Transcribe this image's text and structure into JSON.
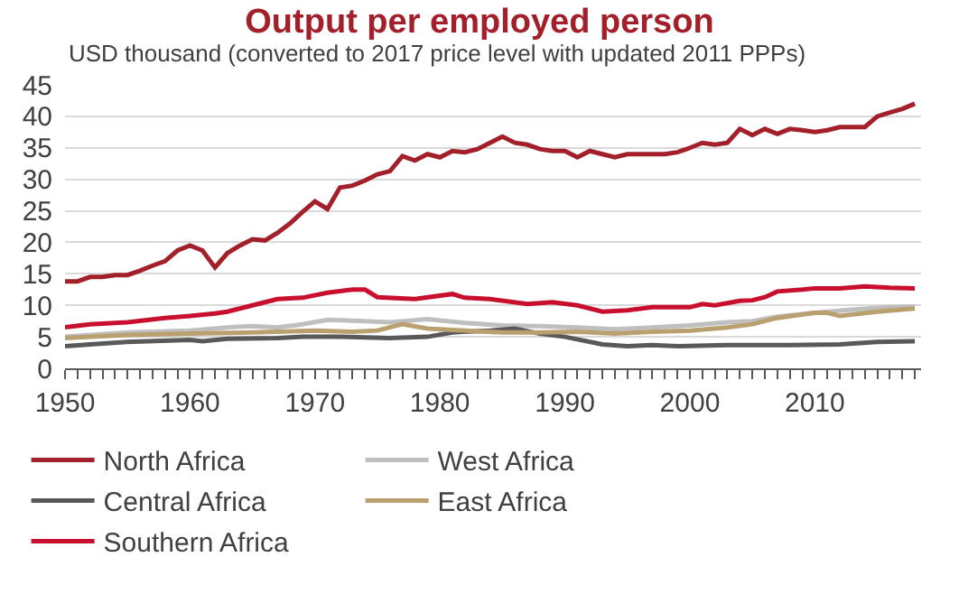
{
  "chart_data": {
    "type": "line",
    "title": "Output per employed person",
    "subtitle": "USD thousand (converted to 2017 price level with updated 2011 PPPs)",
    "xlim": [
      1950,
      2018.5
    ],
    "xticks": [
      1950,
      {
        "value": 1951,
        "label": null
      },
      {
        "value": 1952,
        "label": null
      },
      {
        "value": 1953,
        "label": null
      },
      {
        "value": 1954,
        "label": null
      },
      {
        "value": 1955,
        "label": null
      },
      {
        "value": 1956,
        "label": null
      },
      {
        "value": 1957,
        "label": null
      },
      {
        "value": 1958,
        "label": null
      },
      {
        "value": 1959,
        "label": null
      },
      1960,
      {
        "value": 1961,
        "label": null
      },
      {
        "value": 1962,
        "label": null
      },
      {
        "value": 1963,
        "label": null
      },
      {
        "value": 1964,
        "label": null
      },
      {
        "value": 1965,
        "label": null
      },
      {
        "value": 1966,
        "label": null
      },
      {
        "value": 1967,
        "label": null
      },
      {
        "value": 1968,
        "label": null
      },
      {
        "value": 1969,
        "label": null
      },
      1970,
      {
        "value": 1971,
        "label": null
      },
      {
        "value": 1972,
        "label": null
      },
      {
        "value": 1973,
        "label": null
      },
      {
        "value": 1974,
        "label": null
      },
      {
        "value": 1975,
        "label": null
      },
      {
        "value": 1976,
        "label": null
      },
      {
        "value": 1977,
        "label": null
      },
      {
        "value": 1978,
        "label": null
      },
      {
        "value": 1979,
        "label": null
      },
      1980,
      {
        "value": 1981,
        "label": null
      },
      {
        "value": 1982,
        "label": null
      },
      {
        "value": 1983,
        "label": null
      },
      {
        "value": 1984,
        "label": null
      },
      {
        "value": 1985,
        "label": null
      },
      {
        "value": 1986,
        "label": null
      },
      {
        "value": 1987,
        "label": null
      },
      {
        "value": 1988,
        "label": null
      },
      {
        "value": 1989,
        "label": null
      },
      1990,
      {
        "value": 1991,
        "label": null
      },
      {
        "value": 1992,
        "label": null
      },
      {
        "value": 1993,
        "label": null
      },
      {
        "value": 1994,
        "label": null
      },
      {
        "value": 1995,
        "label": null
      },
      {
        "value": 1996,
        "label": null
      },
      {
        "value": 1997,
        "label": null
      },
      {
        "value": 1998,
        "label": null
      },
      {
        "value": 1999,
        "label": null
      },
      2000,
      {
        "value": 2001,
        "label": null
      },
      {
        "value": 2002,
        "label": null
      },
      {
        "value": 2003,
        "label": null
      },
      {
        "value": 2004,
        "label": null
      },
      {
        "value": 2005,
        "label": null
      },
      {
        "value": 2006,
        "label": null
      },
      {
        "value": 2007,
        "label": null
      },
      {
        "value": 2008,
        "label": null
      },
      {
        "value": 2009,
        "label": null
      },
      2010,
      {
        "value": 2011,
        "label": null
      },
      {
        "value": 2012,
        "label": null
      },
      {
        "value": 2013,
        "label": null
      },
      {
        "value": 2014,
        "label": null
      },
      {
        "value": 2015,
        "label": null
      },
      {
        "value": 2016,
        "label": null
      },
      {
        "value": 2017,
        "label": null
      },
      {
        "value": 2018,
        "label": null
      }
    ],
    "ylim": [
      0,
      45
    ],
    "yticks": [
      0,
      5,
      10,
      15,
      20,
      25,
      30,
      35,
      40,
      45
    ],
    "grid": "y",
    "legend": "bottom",
    "line_style": "solid",
    "marker": "none",
    "series": [
      {
        "name": "North Africa",
        "color": "#a3202a",
        "x": [
          1950,
          1951,
          1952,
          1953,
          1954,
          1955,
          1956,
          1957,
          1958,
          1959,
          1960,
          1961,
          1962,
          1963,
          1964,
          1965,
          1966,
          1967,
          1968,
          1969,
          1970,
          1971,
          1972,
          1973,
          1974,
          1975,
          1976,
          1977,
          1978,
          1979,
          1980,
          1981,
          1982,
          1983,
          1984,
          1985,
          1986,
          1987,
          1988,
          1989,
          1990,
          1991,
          1992,
          1993,
          1994,
          1995,
          1996,
          1997,
          1998,
          1999,
          2000,
          2001,
          2002,
          2003,
          2004,
          2005,
          2006,
          2007,
          2008,
          2009,
          2010,
          2011,
          2012,
          2013,
          2014,
          2015,
          2016,
          2017,
          2018
        ],
        "values": [
          13.8,
          13.8,
          14.5,
          14.5,
          14.8,
          14.8,
          15.5,
          16.3,
          17,
          18.7,
          19.5,
          18.7,
          16,
          18.3,
          19.5,
          20.5,
          20.3,
          21.5,
          23,
          24.8,
          26.5,
          25.3,
          28.7,
          29,
          29.8,
          30.8,
          31.3,
          33.7,
          33,
          34,
          33.5,
          34.5,
          34.3,
          34.8,
          35.8,
          36.8,
          35.8,
          35.5,
          34.8,
          34.5,
          34.5,
          33.5,
          34.5,
          34,
          33.5,
          34,
          34,
          34,
          34,
          34.3,
          35,
          35.8,
          35.5,
          35.8,
          38,
          37,
          38,
          37.2,
          38,
          37.8,
          37.5,
          37.8,
          38.3,
          38.3,
          38.3,
          40,
          40.6,
          41.2,
          42
        ]
      },
      {
        "name": "West Africa",
        "color": "#bfbfbf",
        "x": [
          1950,
          1955,
          1960,
          1963,
          1965,
          1967,
          1969,
          1971,
          1974,
          1976,
          1979,
          1982,
          1985,
          1988,
          1991,
          1994,
          1997,
          2000,
          2003,
          2005,
          2007,
          2010,
          2013,
          2016,
          2018
        ],
        "values": [
          5,
          5.7,
          6,
          6.5,
          6.7,
          6.5,
          7,
          7.7,
          7.5,
          7.3,
          7.8,
          7.2,
          6.8,
          6.7,
          6.5,
          6.2,
          6.5,
          6.8,
          7.3,
          7.5,
          8.2,
          8.8,
          9.3,
          9.7,
          9.8
        ]
      },
      {
        "name": "Central Africa",
        "color": "#595959",
        "x": [
          1950,
          1952,
          1955,
          1960,
          1961,
          1963,
          1967,
          1969,
          1972,
          1976,
          1979,
          1981,
          1984,
          1986,
          1988,
          1990,
          1993,
          1995,
          1997,
          1999,
          2003,
          2008,
          2012,
          2015,
          2018
        ],
        "values": [
          3.5,
          3.8,
          4.2,
          4.5,
          4.3,
          4.7,
          4.8,
          5,
          5,
          4.8,
          5,
          5.7,
          6,
          6.3,
          5.5,
          5,
          3.8,
          3.5,
          3.7,
          3.5,
          3.7,
          3.7,
          3.8,
          4.2,
          4.3
        ]
      },
      {
        "name": "East Africa",
        "color": "#b9a06e",
        "x": [
          1950,
          1955,
          1960,
          1965,
          1970,
          1973,
          1975,
          1977,
          1979,
          1982,
          1985,
          1988,
          1991,
          1994,
          1997,
          2000,
          2003,
          2005,
          2007,
          2010,
          2011,
          2012,
          2015,
          2018
        ],
        "values": [
          4.8,
          5.3,
          5.5,
          5.7,
          6,
          5.8,
          6,
          7,
          6.3,
          6,
          5.7,
          5.7,
          5.8,
          5.5,
          5.8,
          6,
          6.5,
          7,
          8,
          8.8,
          8.8,
          8.3,
          9,
          9.5
        ]
      },
      {
        "name": "Southern Africa",
        "color": "#c8102e",
        "x": [
          1950,
          1952,
          1955,
          1958,
          1960,
          1962,
          1963,
          1965,
          1967,
          1969,
          1971,
          1973,
          1974,
          1975,
          1978,
          1981,
          1982,
          1984,
          1987,
          1989,
          1991,
          1993,
          1995,
          1997,
          2000,
          2001,
          2002,
          2004,
          2005,
          2006,
          2007,
          2009,
          2010,
          2012,
          2014,
          2016,
          2018
        ],
        "values": [
          6.5,
          7,
          7.3,
          8,
          8.3,
          8.7,
          9,
          10,
          11,
          11.2,
          12,
          12.5,
          12.5,
          11.3,
          11,
          11.8,
          11.2,
          11,
          10.2,
          10.5,
          10,
          9,
          9.2,
          9.7,
          9.7,
          10.2,
          10,
          10.7,
          10.8,
          11.3,
          12.2,
          12.5,
          12.7,
          12.7,
          13,
          12.8,
          12.7
        ]
      }
    ]
  }
}
